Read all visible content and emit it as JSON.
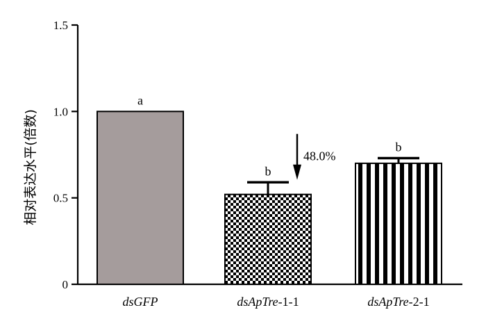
{
  "chart_data": {
    "type": "bar",
    "ylabel": "相对表达水平(倍数)",
    "ylim": [
      0,
      1.5
    ],
    "yticks": [
      {
        "value": 0,
        "label": "0"
      },
      {
        "value": 0.5,
        "label": "0.5"
      },
      {
        "value": 1.0,
        "label": "1.0"
      },
      {
        "value": 1.5,
        "label": "1.5"
      }
    ],
    "grid": false,
    "categories": [
      {
        "italic": "dsGFP",
        "suffix": ""
      },
      {
        "italic": "dsApTre",
        "suffix": "-1-1"
      },
      {
        "italic": "dsApTre",
        "suffix": "-2-1"
      }
    ],
    "values": [
      1.0,
      0.52,
      0.7
    ],
    "errors": [
      0,
      0.07,
      0.03
    ],
    "significance": [
      "a",
      "b",
      "b"
    ],
    "fills": [
      "solid-gray",
      "checkerboard",
      "vertical-stripes"
    ],
    "colors": {
      "gray": "#a59c9c",
      "ink": "#000000"
    },
    "annotation": {
      "text": "48.0%",
      "category_index": 1,
      "arrow": "down"
    }
  }
}
